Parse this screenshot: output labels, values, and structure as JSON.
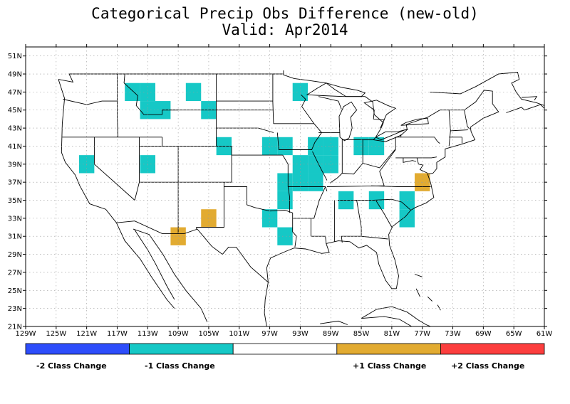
{
  "title": "Categorical Precip Obs Difference (new-old)",
  "subtitle": "Valid: Apr2014",
  "lat_labels": [
    "51N",
    "49N",
    "47N",
    "45N",
    "43N",
    "41N",
    "39N",
    "37N",
    "35N",
    "33N",
    "31N",
    "29N",
    "27N",
    "25N",
    "23N",
    "21N"
  ],
  "lon_labels": [
    "129W",
    "125W",
    "121W",
    "117W",
    "113W",
    "109W",
    "105W",
    "101W",
    "97W",
    "93W",
    "89W",
    "85W",
    "81W",
    "77W",
    "73W",
    "69W",
    "65W",
    "61W"
  ],
  "legend": {
    "colors": [
      "#2d4dfb",
      "#16c8c6",
      "#ffffff",
      "#e2ab31",
      "#fc3e3e"
    ],
    "labels": [
      "-2 Class Change",
      "-1 Class Change",
      "+1 Class Change",
      "+2 Class Change"
    ]
  },
  "cell_size_deg": 2,
  "minus_one_cells": [
    [
      -115,
      47
    ],
    [
      -113,
      47
    ],
    [
      -113,
      45
    ],
    [
      -111,
      45
    ],
    [
      -107,
      47
    ],
    [
      -105,
      45
    ],
    [
      -103,
      41
    ],
    [
      -97,
      41
    ],
    [
      -95,
      41
    ],
    [
      -93,
      47
    ],
    [
      -93,
      39
    ],
    [
      -93,
      37
    ],
    [
      -95,
      37
    ],
    [
      -95,
      35
    ],
    [
      -91,
      41
    ],
    [
      -89,
      41
    ],
    [
      -91,
      39
    ],
    [
      -89,
      39
    ],
    [
      -91,
      37
    ],
    [
      -85,
      41
    ],
    [
      -83,
      41
    ],
    [
      -87,
      35
    ],
    [
      -83,
      35
    ],
    [
      -79,
      35
    ],
    [
      -79,
      33
    ],
    [
      -97,
      33
    ],
    [
      -95,
      31
    ],
    [
      -121,
      39
    ],
    [
      -113,
      39
    ]
  ],
  "plus_one_cells": [
    [
      -109,
      31
    ],
    [
      -105,
      33
    ],
    [
      -77,
      37
    ]
  ]
}
